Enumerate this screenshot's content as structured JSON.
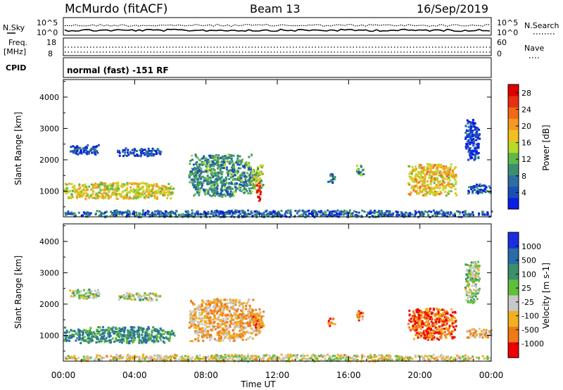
{
  "header": {
    "station": "McMurdo (fitACF)",
    "beam": "Beam 13",
    "date": "16/Sep/2019"
  },
  "top_panels": {
    "nsky_label": "N.Sky",
    "nsky_ticks": [
      "10^5",
      "10^0"
    ],
    "nsearch_label": "N.Search",
    "nsearch_ticks": [
      "10^5",
      "10^0"
    ],
    "freq_label": "Freq.",
    "freq_unit": "[MHz]",
    "freq_ticks": [
      "18",
      "8"
    ],
    "nave_label": "Nave",
    "nave_ticks": [
      "60",
      "0"
    ],
    "cpid_label": "CPID",
    "cpid_text": "normal (fast) -151 RF"
  },
  "chart_data": [
    {
      "type": "heatmap",
      "name": "power",
      "ylabel": "Slant Range [km]",
      "xlabel": "Time UT",
      "x_ticks": [
        "00:00",
        "04:00",
        "08:00",
        "12:00",
        "16:00",
        "20:00",
        "00:00"
      ],
      "xlim_hours": [
        0,
        24
      ],
      "ylim": [
        180,
        4560
      ],
      "y_ticks": [
        1000,
        2000,
        3000,
        4000
      ],
      "colorbar": {
        "label": "Power [dB]",
        "ticks": [
          "4",
          "8",
          "12",
          "16",
          "20",
          "24",
          "28"
        ],
        "colors": [
          "#0a1de6",
          "#1a4fb8",
          "#2b6fa0",
          "#3b8f70",
          "#5fb84a",
          "#b8d82a",
          "#f0c020",
          "#f59a20",
          "#f06a18",
          "#e83010",
          "#e00000"
        ]
      },
      "blobs": [
        {
          "t0": 0.0,
          "t1": 6.2,
          "r0": 780,
          "r1": 1300,
          "level": 0.55
        },
        {
          "t0": 0.3,
          "t1": 2.0,
          "r0": 2200,
          "r1": 2500,
          "level": 0.15
        },
        {
          "t0": 3.0,
          "t1": 5.5,
          "r0": 2150,
          "r1": 2400,
          "level": 0.12
        },
        {
          "t0": 7.0,
          "t1": 10.6,
          "r0": 850,
          "r1": 2200,
          "level": 0.3
        },
        {
          "t0": 10.5,
          "t1": 11.2,
          "r0": 1000,
          "r1": 1900,
          "level": 0.45
        },
        {
          "t0": 10.8,
          "t1": 11.05,
          "r0": 700,
          "r1": 1300,
          "level": 0.95
        },
        {
          "t0": 14.8,
          "t1": 15.2,
          "r0": 1300,
          "r1": 1600,
          "level": 0.25
        },
        {
          "t0": 16.4,
          "t1": 16.8,
          "r0": 1500,
          "r1": 1900,
          "level": 0.35
        },
        {
          "t0": 19.3,
          "t1": 22.0,
          "r0": 880,
          "r1": 1900,
          "level": 0.6
        },
        {
          "t0": 22.6,
          "t1": 24.0,
          "r0": 950,
          "r1": 1250,
          "level": 0.2
        },
        {
          "t0": 22.5,
          "t1": 23.3,
          "r0": 2000,
          "r1": 3400,
          "level": 0.1
        },
        {
          "t0": 0.0,
          "t1": 24.0,
          "r0": 200,
          "r1": 420,
          "level": 0.2
        }
      ]
    },
    {
      "type": "heatmap",
      "name": "velocity",
      "ylabel": "Slant Range [km]",
      "xlabel": "Time UT",
      "x_ticks": [
        "00:00",
        "04:00",
        "08:00",
        "12:00",
        "16:00",
        "20:00",
        "00:00"
      ],
      "xlim_hours": [
        0,
        24
      ],
      "ylim": [
        180,
        4560
      ],
      "y_ticks": [
        1000,
        2000,
        3000,
        4000
      ],
      "colorbar": {
        "label": "Velocity [m s-1]",
        "ticks": [
          "1000",
          "500",
          "100",
          "25",
          "-25",
          "-100",
          "-500",
          "-1000"
        ],
        "colors": [
          "#1a2ee0",
          "#2a6aa8",
          "#3b8f6a",
          "#5fbf3a",
          "#c8c8c8",
          "#f0b020",
          "#f07818",
          "#ee0000"
        ]
      },
      "blobs": [
        {
          "t0": 0.0,
          "t1": 6.2,
          "r0": 780,
          "r1": 1300,
          "level": 0.3
        },
        {
          "t0": 0.3,
          "t1": 2.0,
          "r0": 2200,
          "r1": 2500,
          "level": 0.5
        },
        {
          "t0": 3.0,
          "t1": 5.5,
          "r0": 2150,
          "r1": 2400,
          "level": 0.5
        },
        {
          "t0": 7.0,
          "t1": 10.6,
          "r0": 850,
          "r1": 2200,
          "level": 0.7
        },
        {
          "t0": 10.5,
          "t1": 11.2,
          "r0": 1000,
          "r1": 1900,
          "level": 0.75
        },
        {
          "t0": 14.8,
          "t1": 15.2,
          "r0": 1300,
          "r1": 1600,
          "level": 0.8
        },
        {
          "t0": 16.4,
          "t1": 16.8,
          "r0": 1500,
          "r1": 1900,
          "level": 0.75
        },
        {
          "t0": 19.3,
          "t1": 22.0,
          "r0": 880,
          "r1": 1900,
          "level": 0.85
        },
        {
          "t0": 22.6,
          "t1": 24.0,
          "r0": 950,
          "r1": 1250,
          "level": 0.7
        },
        {
          "t0": 22.5,
          "t1": 23.3,
          "r0": 2000,
          "r1": 3400,
          "level": 0.5
        },
        {
          "t0": 0.0,
          "t1": 24.0,
          "r0": 200,
          "r1": 420,
          "level": 0.6
        }
      ]
    }
  ]
}
